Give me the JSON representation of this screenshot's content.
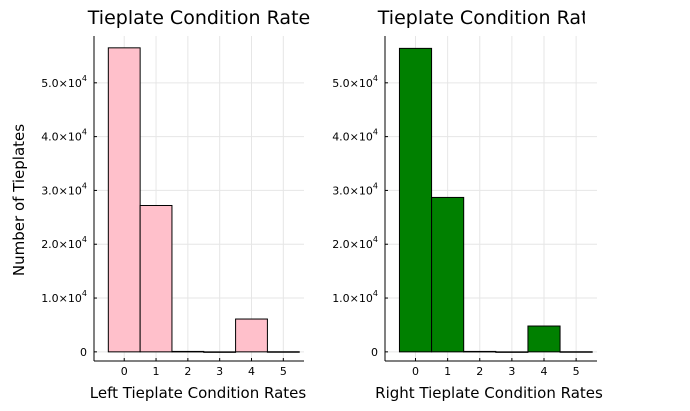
{
  "y_axis_label": "Number of Tieplates",
  "corner_text": "",
  "chart_data": [
    {
      "type": "bar",
      "title": "Tieplate Condition Rate",
      "xlabel": "Left Tieplate Condition Rates",
      "ylabel": "Number of Tieplates",
      "bar_color": "#FFC0CB",
      "x_ticks": [
        0,
        1,
        2,
        3,
        4,
        5
      ],
      "y_ticks": [
        {
          "value": 0,
          "mant": "0",
          "exp": ""
        },
        {
          "value": 10000,
          "mant": "1.0×10",
          "exp": "4"
        },
        {
          "value": 20000,
          "mant": "2.0×10",
          "exp": "4"
        },
        {
          "value": 30000,
          "mant": "3.0×10",
          "exp": "4"
        },
        {
          "value": 40000,
          "mant": "4.0×10",
          "exp": "4"
        },
        {
          "value": 50000,
          "mant": "5.0×10",
          "exp": "4"
        }
      ],
      "xlim": [
        -0.95,
        5.65
      ],
      "ylim": [
        -1700,
        58700
      ],
      "bins": [
        {
          "x0": -0.5,
          "x1": 0.5,
          "count": 56500
        },
        {
          "x0": 0.5,
          "x1": 1.5,
          "count": 27200
        },
        {
          "x0": 1.5,
          "x1": 2.5,
          "count": 80
        },
        {
          "x0": 2.5,
          "x1": 3.5,
          "count": 0
        },
        {
          "x0": 3.5,
          "x1": 4.5,
          "count": 6100
        },
        {
          "x0": 4.5,
          "x1": 5.5,
          "count": 20
        }
      ],
      "grid": true,
      "legend": "none"
    },
    {
      "type": "bar",
      "title": "Tieplate Condition Rate",
      "xlabel": "Right Tieplate Condition Rates",
      "ylabel": "",
      "bar_color": "#008000",
      "x_ticks": [
        0,
        1,
        2,
        3,
        4,
        5
      ],
      "y_ticks": [
        {
          "value": 0,
          "mant": "0",
          "exp": ""
        },
        {
          "value": 10000,
          "mant": "1.0×10",
          "exp": "4"
        },
        {
          "value": 20000,
          "mant": "2.0×10",
          "exp": "4"
        },
        {
          "value": 30000,
          "mant": "3.0×10",
          "exp": "4"
        },
        {
          "value": 40000,
          "mant": "4.0×10",
          "exp": "4"
        },
        {
          "value": 50000,
          "mant": "5.0×10",
          "exp": "4"
        }
      ],
      "xlim": [
        -0.95,
        5.65
      ],
      "ylim": [
        -1700,
        58700
      ],
      "bins": [
        {
          "x0": -0.5,
          "x1": 0.5,
          "count": 56400
        },
        {
          "x0": 0.5,
          "x1": 1.5,
          "count": 28700
        },
        {
          "x0": 1.5,
          "x1": 2.5,
          "count": 80
        },
        {
          "x0": 2.5,
          "x1": 3.5,
          "count": 0
        },
        {
          "x0": 3.5,
          "x1": 4.5,
          "count": 4800
        },
        {
          "x0": 4.5,
          "x1": 5.5,
          "count": 20
        }
      ],
      "grid": true,
      "legend": "none"
    }
  ]
}
